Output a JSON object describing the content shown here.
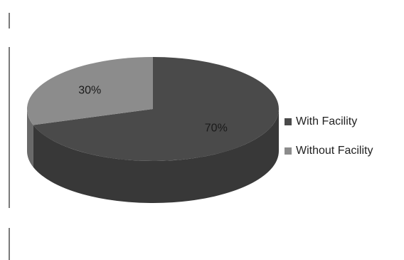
{
  "chart_data": {
    "type": "pie",
    "title": "",
    "categories": [
      "With Facility",
      "Without Facility"
    ],
    "values": [
      70,
      30
    ],
    "data_labels": [
      "70%",
      "30%"
    ],
    "colors": [
      "#4a4a4a",
      "#8c8c8c"
    ],
    "style": "3d",
    "legend": "right"
  }
}
